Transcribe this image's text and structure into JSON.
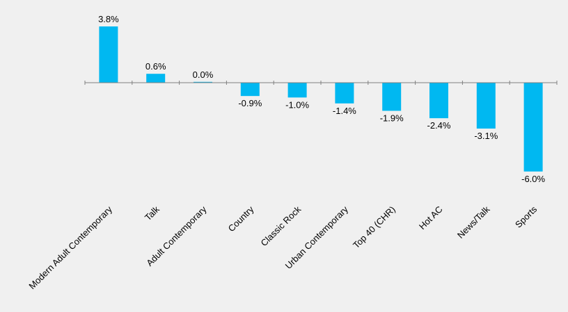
{
  "chart_data": {
    "type": "bar",
    "categories": [
      "Modern Adult Contemporary",
      "Talk",
      "Adult Contemporary",
      "Country",
      "Classic Rock",
      "Urban Contemporary",
      "Top 40 (CHR)",
      "Hot AC",
      "News/Talk",
      "Sports"
    ],
    "values": [
      3.8,
      0.6,
      0.0,
      -0.9,
      -1.0,
      -1.4,
      -1.9,
      -2.4,
      -3.1,
      -6.0
    ],
    "value_labels": [
      "3.8%",
      "0.6%",
      "0.0%",
      "-0.9%",
      "-1.0%",
      "-1.4%",
      "-1.9%",
      "-2.4%",
      "-3.1%",
      "-6.0%"
    ],
    "title": "",
    "xlabel": "",
    "ylabel": "",
    "ylim": [
      -6.0,
      3.8
    ],
    "grid": false,
    "legend": "none",
    "colors": {
      "bar": "#00b8f1",
      "axis": "#7f7f7f",
      "background": "#f0f0f0",
      "text": "#000000"
    }
  }
}
